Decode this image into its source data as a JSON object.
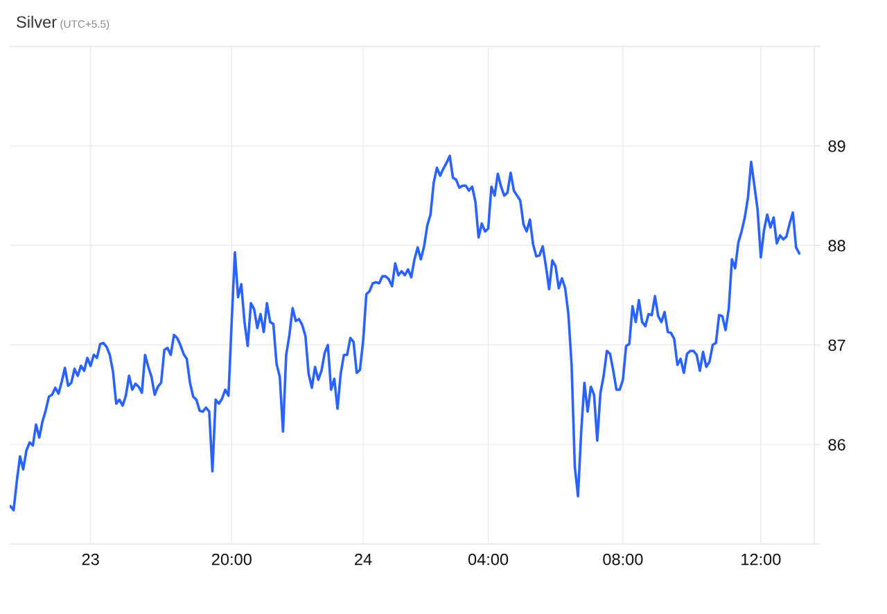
{
  "chart_data": {
    "type": "line",
    "title": "Silver",
    "subtitle": "(UTC+5.5)",
    "categories": [
      null,
      null,
      null,
      null,
      null,
      null,
      null,
      null,
      null,
      null,
      null,
      null,
      null,
      null,
      null,
      null,
      null,
      null,
      null,
      null,
      null,
      null,
      null,
      null,
      null,
      "23",
      null,
      null,
      null,
      null,
      null,
      null,
      null,
      null,
      null,
      null,
      null,
      null,
      null,
      null,
      null,
      null,
      null,
      null,
      null,
      null,
      null,
      null,
      null,
      null,
      null,
      null,
      null,
      null,
      null,
      null,
      null,
      null,
      null,
      null,
      null,
      null,
      null,
      null,
      null,
      null,
      null,
      null,
      null,
      "20:00",
      null,
      null,
      null,
      null,
      null,
      null,
      null,
      null,
      null,
      null,
      null,
      null,
      null,
      null,
      null,
      null,
      null,
      null,
      null,
      null,
      null,
      null,
      null,
      null,
      null,
      null,
      null,
      null,
      null,
      null,
      null,
      null,
      null,
      null,
      null,
      null,
      null,
      null,
      null,
      null,
      "24",
      null,
      null,
      null,
      null,
      null,
      null,
      null,
      null,
      null,
      null,
      null,
      null,
      null,
      null,
      null,
      null,
      null,
      null,
      null,
      null,
      null,
      null,
      null,
      null,
      null,
      null,
      null,
      null,
      null,
      null,
      null,
      null,
      null,
      null,
      null,
      null,
      null,
      null,
      "04:00",
      null,
      null,
      null,
      null,
      null,
      null,
      null,
      null,
      null,
      null,
      null,
      null,
      null,
      null,
      null,
      null,
      null,
      null,
      null,
      null,
      null,
      null,
      null,
      null,
      null,
      null,
      null,
      null,
      null,
      null,
      null,
      null,
      null,
      null,
      null,
      null,
      null,
      null,
      null,
      null,
      null,
      "08:00",
      null,
      null,
      null,
      null,
      null,
      null,
      null,
      null,
      null,
      null,
      null,
      null,
      null,
      null,
      null,
      null,
      null,
      null,
      null,
      null,
      null,
      null,
      null,
      null,
      null,
      null,
      null,
      null,
      null,
      null,
      null,
      null,
      null,
      null,
      null,
      null,
      null,
      null,
      null,
      null,
      null,
      null,
      "12:00",
      null,
      null,
      null,
      null,
      null,
      null,
      null,
      null,
      null,
      null,
      null,
      null
    ],
    "series": [
      {
        "color": "#2962ff",
        "values": [
          85.38,
          85.34,
          85.63,
          85.88,
          85.75,
          85.94,
          86.02,
          85.99,
          86.2,
          86.07,
          86.23,
          86.34,
          86.48,
          86.5,
          86.57,
          86.51,
          86.63,
          86.77,
          86.59,
          86.62,
          86.76,
          86.69,
          86.79,
          86.74,
          86.87,
          86.79,
          86.9,
          86.87,
          87.01,
          87.02,
          86.98,
          86.9,
          86.73,
          86.41,
          86.45,
          86.39,
          86.49,
          86.69,
          86.55,
          86.61,
          86.58,
          86.52,
          86.9,
          86.78,
          86.68,
          86.5,
          86.58,
          86.62,
          86.95,
          86.97,
          86.9,
          87.1,
          87.07,
          87.0,
          86.91,
          86.86,
          86.62,
          86.48,
          86.45,
          86.34,
          86.33,
          86.37,
          86.33,
          85.73,
          86.45,
          86.41,
          86.46,
          86.55,
          86.49,
          87.23,
          87.93,
          87.48,
          87.61,
          87.23,
          86.99,
          87.42,
          87.36,
          87.17,
          87.31,
          87.13,
          87.42,
          87.23,
          87.21,
          86.81,
          86.68,
          86.13,
          86.9,
          87.1,
          87.37,
          87.24,
          87.26,
          87.2,
          87.09,
          86.71,
          86.57,
          86.78,
          86.65,
          86.74,
          86.92,
          87.0,
          86.55,
          86.66,
          86.36,
          86.71,
          86.9,
          86.9,
          87.07,
          87.03,
          86.72,
          86.75,
          87.04,
          87.51,
          87.54,
          87.62,
          87.63,
          87.62,
          87.69,
          87.69,
          87.66,
          87.59,
          87.82,
          87.7,
          87.74,
          87.7,
          87.76,
          87.68,
          87.86,
          87.98,
          87.86,
          87.99,
          88.2,
          88.31,
          88.63,
          88.78,
          88.7,
          88.77,
          88.83,
          88.9,
          88.68,
          88.66,
          88.58,
          88.6,
          88.6,
          88.55,
          88.59,
          88.44,
          88.08,
          88.22,
          88.14,
          88.17,
          88.59,
          88.5,
          88.72,
          88.59,
          88.5,
          88.53,
          88.73,
          88.55,
          88.5,
          88.45,
          88.21,
          88.14,
          88.26,
          88.01,
          87.89,
          87.9,
          87.99,
          87.79,
          87.56,
          87.85,
          87.79,
          87.57,
          87.67,
          87.57,
          87.31,
          86.8,
          85.78,
          85.48,
          86.13,
          86.62,
          86.33,
          86.58,
          86.5,
          86.04,
          86.52,
          86.69,
          86.94,
          86.91,
          86.74,
          86.55,
          86.55,
          86.65,
          86.99,
          87.01,
          87.39,
          87.23,
          87.45,
          87.23,
          87.19,
          87.31,
          87.3,
          87.49,
          87.29,
          87.23,
          87.33,
          87.13,
          87.12,
          87.06,
          86.8,
          86.86,
          86.72,
          86.91,
          86.94,
          86.94,
          86.9,
          86.74,
          86.93,
          86.78,
          86.83,
          87.0,
          87.02,
          87.3,
          87.29,
          87.15,
          87.36,
          87.86,
          87.77,
          88.03,
          88.14,
          88.28,
          88.48,
          88.84,
          88.6,
          88.36,
          87.88,
          88.15,
          88.31,
          88.18,
          88.28,
          88.02,
          88.1,
          88.06,
          88.09,
          88.22,
          88.33,
          87.98,
          87.92
        ]
      }
    ],
    "ylim": [
      85,
      90
    ],
    "yticks": [
      {
        "value": 85,
        "label": null
      },
      86,
      87,
      88,
      89,
      {
        "value": 90,
        "label": null
      }
    ],
    "grid": true,
    "marker": "none",
    "line_style": "solid"
  }
}
